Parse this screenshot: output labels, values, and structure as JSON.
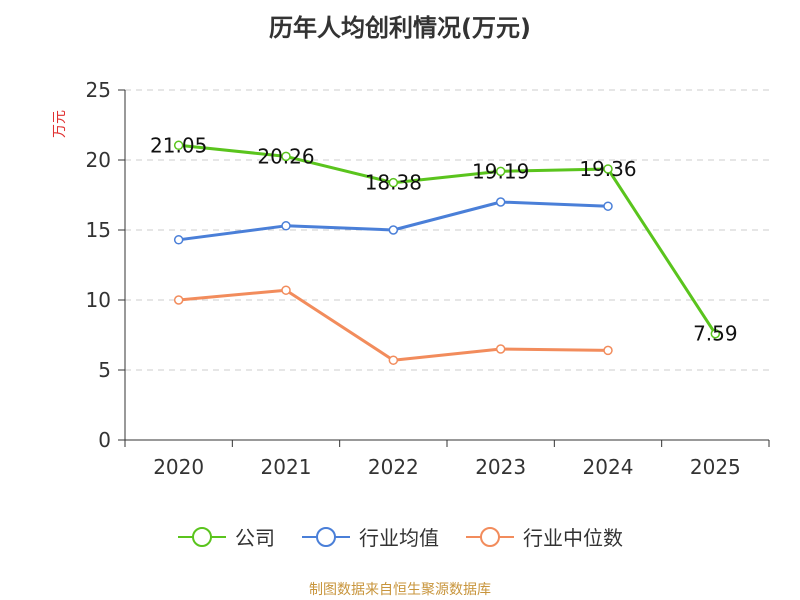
{
  "chart_data": {
    "type": "line",
    "title": "历年人均创利情况(万元)",
    "ylabel": "万元",
    "xlabel": "",
    "categories": [
      "2020",
      "2021",
      "2022",
      "2023",
      "2024",
      "2025"
    ],
    "ylim": [
      0,
      25
    ],
    "yticks": [
      0,
      5,
      10,
      15,
      20,
      25
    ],
    "grid": true,
    "legend_position": "bottom",
    "series": [
      {
        "name": "公司",
        "color": "#5ac41d",
        "values": [
          21.05,
          20.26,
          18.38,
          19.19,
          19.36,
          7.59
        ],
        "labels": [
          "21.05",
          "20.26",
          "18.38",
          "19.19",
          "19.36",
          "7.59"
        ]
      },
      {
        "name": "行业均值",
        "color": "#4a7fd8",
        "values": [
          14.3,
          15.3,
          15.0,
          17.0,
          16.7,
          null
        ]
      },
      {
        "name": "行业中位数",
        "color": "#f28c5c",
        "values": [
          10.0,
          10.7,
          5.7,
          6.5,
          6.4,
          null
        ]
      }
    ]
  },
  "footer": {
    "source": "制图数据来自恒生聚源数据库"
  }
}
